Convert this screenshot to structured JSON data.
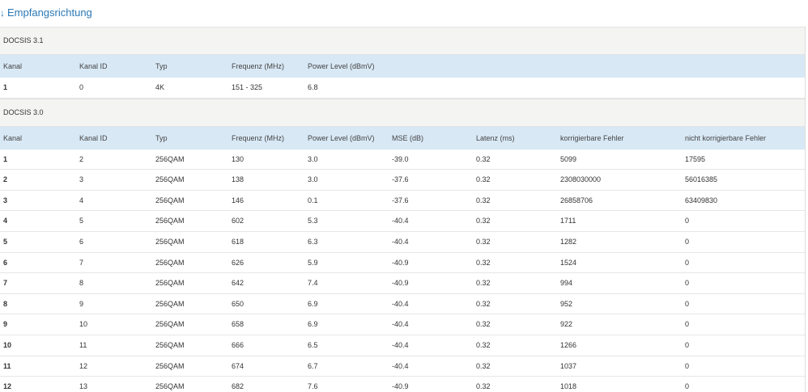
{
  "header": {
    "title": "Empfangsrichtung"
  },
  "sections": [
    {
      "label": "DOCSIS 3.1",
      "columns": [
        "Kanal",
        "Kanal ID",
        "Typ",
        "Frequenz (MHz)",
        "Power Level (dBmV)"
      ],
      "rows": [
        [
          "1",
          "0",
          "4K",
          "151 - 325",
          "6.8"
        ]
      ]
    },
    {
      "label": "DOCSIS 3.0",
      "columns": [
        "Kanal",
        "Kanal ID",
        "Typ",
        "Frequenz (MHz)",
        "Power Level (dBmV)",
        "MSE (dB)",
        "Latenz (ms)",
        "korrigierbare Fehler",
        "nicht korrigierbare Fehler"
      ],
      "rows": [
        [
          "1",
          "2",
          "256QAM",
          "130",
          "3.0",
          "-39.0",
          "0.32",
          "5099",
          "17595"
        ],
        [
          "2",
          "3",
          "256QAM",
          "138",
          "3.0",
          "-37.6",
          "0.32",
          "2308030000",
          "56016385"
        ],
        [
          "3",
          "4",
          "256QAM",
          "146",
          "0.1",
          "-37.6",
          "0.32",
          "26858706",
          "63409830"
        ],
        [
          "4",
          "5",
          "256QAM",
          "602",
          "5.3",
          "-40.4",
          "0.32",
          "1711",
          "0"
        ],
        [
          "5",
          "6",
          "256QAM",
          "618",
          "6.3",
          "-40.4",
          "0.32",
          "1282",
          "0"
        ],
        [
          "6",
          "7",
          "256QAM",
          "626",
          "5.9",
          "-40.9",
          "0.32",
          "1524",
          "0"
        ],
        [
          "7",
          "8",
          "256QAM",
          "642",
          "7.4",
          "-40.9",
          "0.32",
          "994",
          "0"
        ],
        [
          "8",
          "9",
          "256QAM",
          "650",
          "6.9",
          "-40.4",
          "0.32",
          "952",
          "0"
        ],
        [
          "9",
          "10",
          "256QAM",
          "658",
          "6.9",
          "-40.4",
          "0.32",
          "922",
          "0"
        ],
        [
          "10",
          "11",
          "256QAM",
          "666",
          "6.5",
          "-40.4",
          "0.32",
          "1266",
          "0"
        ],
        [
          "11",
          "12",
          "256QAM",
          "674",
          "6.7",
          "-40.4",
          "0.32",
          "1037",
          "0"
        ],
        [
          "12",
          "13",
          "256QAM",
          "682",
          "7.6",
          "-40.9",
          "0.32",
          "1018",
          "0"
        ]
      ]
    }
  ]
}
